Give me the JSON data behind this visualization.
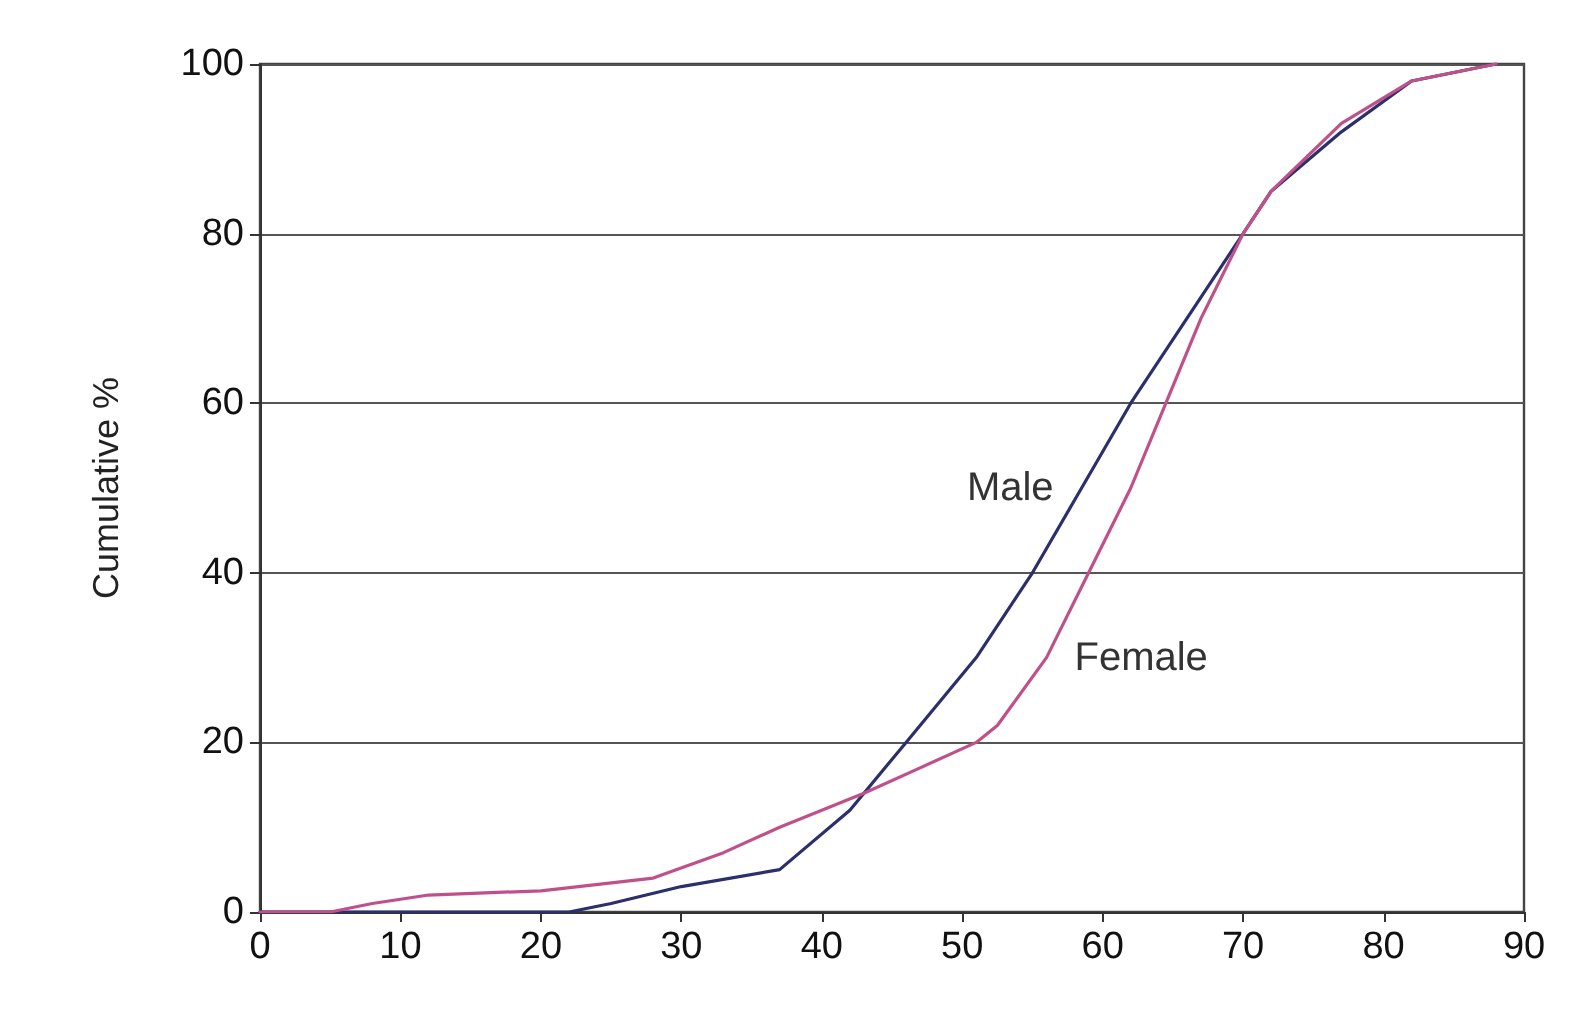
{
  "chart_data": {
    "type": "line",
    "ylabel": "Cumulative %",
    "xlim": [
      0,
      90
    ],
    "xticks": [
      0,
      10,
      20,
      30,
      40,
      50,
      60,
      70,
      80,
      90
    ],
    "ylim": [
      0,
      100
    ],
    "yticks": [
      0,
      20,
      40,
      60,
      80,
      100
    ],
    "grid": "y",
    "legend": false,
    "marker": "none",
    "line_style": "solid",
    "series": [
      {
        "name": "Male",
        "color": "#2b2f6b",
        "x": [
          0,
          10,
          22,
          25,
          30,
          37,
          42,
          46,
          51,
          55,
          58.5,
          62,
          66,
          70,
          72,
          77,
          82,
          88
        ],
        "values": [
          0,
          0,
          0,
          1,
          3,
          5,
          12,
          20,
          30,
          40,
          50,
          60,
          70,
          80,
          85,
          92,
          98,
          100
        ]
      },
      {
        "name": "Female",
        "color": "#c0508a",
        "x": [
          0,
          5,
          8,
          12,
          20,
          28,
          33,
          37,
          43,
          47,
          51,
          52.5,
          56,
          59,
          62,
          64.5,
          67,
          70,
          72,
          77,
          82,
          88
        ],
        "values": [
          0,
          0,
          1,
          2,
          2.5,
          4,
          7,
          10,
          14,
          17,
          20,
          22,
          30,
          40,
          50,
          60,
          70,
          80,
          85,
          93,
          98,
          100
        ]
      }
    ]
  }
}
